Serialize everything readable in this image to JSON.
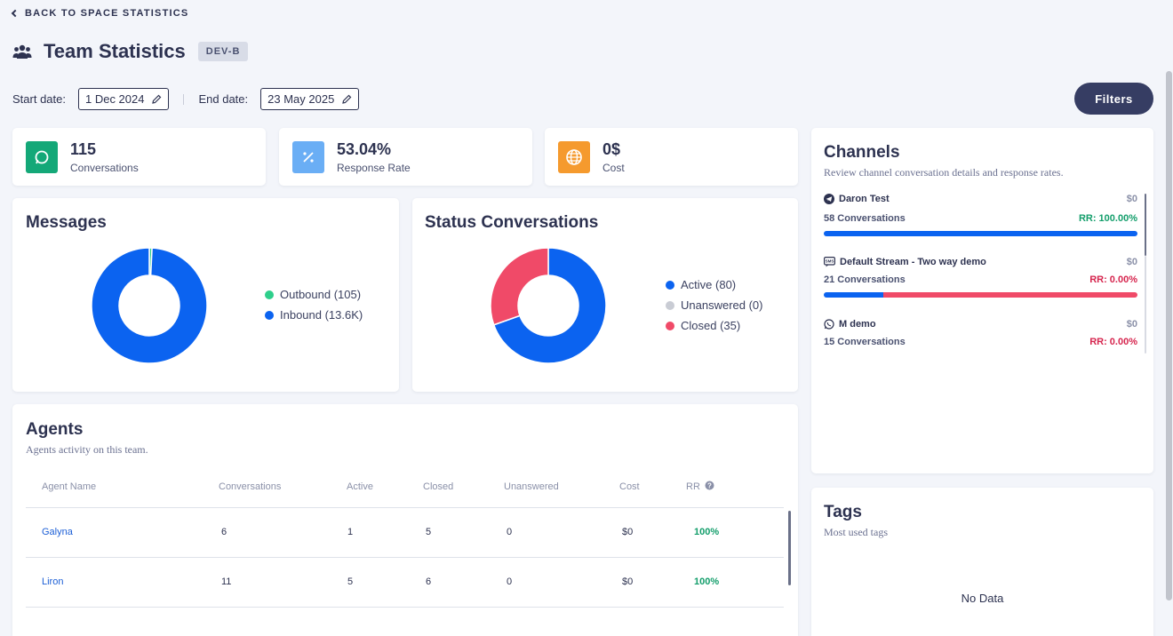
{
  "back_link": "BACK TO SPACE STATISTICS",
  "header": {
    "title": "Team Statistics",
    "badge": "DEV-B"
  },
  "dates": {
    "start_label": "Start date:",
    "start_value": "1 Dec 2024",
    "end_label": "End date:",
    "end_value": "23 May 2025"
  },
  "filters_label": "Filters",
  "kpis": [
    {
      "value": "115",
      "label": "Conversations",
      "icon": "chat-icon",
      "color": "#14a878"
    },
    {
      "value": "53.04%",
      "label": "Response Rate",
      "icon": "percent-icon",
      "color": "#6aaef5"
    },
    {
      "value": "0$",
      "label": "Cost",
      "icon": "globe-icon",
      "color": "#f59a2e"
    }
  ],
  "messages": {
    "title": "Messages",
    "legend": [
      {
        "label": "Outbound (105)",
        "color": "#2ecf8b"
      },
      {
        "label": "Inbound (13.6K)",
        "color": "#0b63f0"
      }
    ],
    "chart_data": {
      "type": "pie",
      "labels": [
        "Outbound",
        "Inbound"
      ],
      "values": [
        105,
        13600
      ]
    }
  },
  "status": {
    "title": "Status Conversations",
    "legend": [
      {
        "label": "Active (80)",
        "color": "#0b63f0"
      },
      {
        "label": "Unanswered (0)",
        "color": "#c9ccd4"
      },
      {
        "label": "Closed (35)",
        "color": "#f04a68"
      }
    ],
    "chart_data": {
      "type": "pie",
      "labels": [
        "Active",
        "Unanswered",
        "Closed"
      ],
      "values": [
        80,
        0,
        35
      ]
    }
  },
  "agents": {
    "title": "Agents",
    "subtitle": "Agents activity on this team.",
    "columns": [
      "Agent Name",
      "Conversations",
      "Active",
      "Closed",
      "Unanswered",
      "Cost",
      "RR"
    ],
    "rows": [
      {
        "name": "Galyna",
        "conversations": "6",
        "active": "1",
        "closed": "5",
        "unanswered": "0",
        "cost": "$0",
        "rr": "100%"
      },
      {
        "name": "Liron",
        "conversations": "11",
        "active": "5",
        "closed": "6",
        "unanswered": "0",
        "cost": "$0",
        "rr": "100%"
      }
    ]
  },
  "channels": {
    "title": "Channels",
    "subtitle": "Review channel conversation details and response rates.",
    "items": [
      {
        "name": "Daron Test",
        "cost": "$0",
        "conversations": "58 Conversations",
        "rr": "RR: 100.00%",
        "rr_value": 1.0,
        "icon": "telegram-icon",
        "rr_color": "#139e6b"
      },
      {
        "name": "Default Stream - Two way demo",
        "cost": "$0",
        "conversations": "21 Conversations",
        "rr": "RR: 0.00%",
        "rr_value": 0.0,
        "icon": "sms-icon",
        "rr_color": "#d6254e"
      },
      {
        "name": "M demo",
        "cost": "$0",
        "conversations": "15 Conversations",
        "rr": "RR: 0.00%",
        "rr_value": 0.0,
        "icon": "whatsapp-icon",
        "rr_color": "#d6254e"
      }
    ]
  },
  "tags": {
    "title": "Tags",
    "subtitle": "Most used tags",
    "empty": "No Data"
  }
}
